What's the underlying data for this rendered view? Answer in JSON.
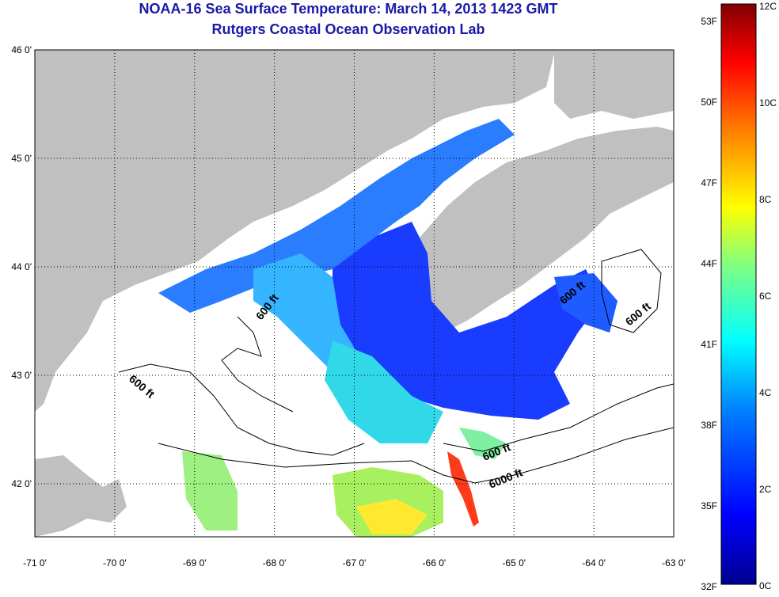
{
  "title_line1": "NOAA-16 Sea Surface Temperature:  March 14, 2013 1423 GMT",
  "title_line2": "Rutgers Coastal Ocean Observation Lab",
  "lat_ticks": [
    {
      "label": "46 0'",
      "value": 46
    },
    {
      "label": "45 0'",
      "value": 45
    },
    {
      "label": "44 0'",
      "value": 44
    },
    {
      "label": "43 0'",
      "value": 43
    },
    {
      "label": "42 0'",
      "value": 42
    }
  ],
  "lon_ticks": [
    {
      "label": "-71 0'",
      "value": -71
    },
    {
      "label": "-70 0'",
      "value": -70
    },
    {
      "label": "-69 0'",
      "value": -69
    },
    {
      "label": "-68 0'",
      "value": -68
    },
    {
      "label": "-67 0'",
      "value": -67
    },
    {
      "label": "-66 0'",
      "value": -66
    },
    {
      "label": "-65 0'",
      "value": -65
    },
    {
      "label": "-64 0'",
      "value": -64
    },
    {
      "label": "-63 0'",
      "value": -63
    }
  ],
  "contour_labels": [
    "600 ft",
    "600 ft",
    "600 ft",
    "600 ft",
    "600 ft",
    "6000 ft"
  ],
  "colorbar": {
    "fahrenheit": [
      "53F",
      "50F",
      "47F",
      "44F",
      "41F",
      "38F",
      "35F",
      "32F"
    ],
    "celsius": [
      "12C",
      "10C",
      "8C",
      "6C",
      "4C",
      "2C",
      "0C"
    ],
    "colors": [
      "#00008f",
      "#0000ff",
      "#0080ff",
      "#00ffff",
      "#80ff80",
      "#ffff00",
      "#ff8000",
      "#ff0000",
      "#800000"
    ]
  },
  "colors": {
    "land": "#c0c0c0",
    "no_data": "#ffffff",
    "title": "#1a1aa8"
  }
}
